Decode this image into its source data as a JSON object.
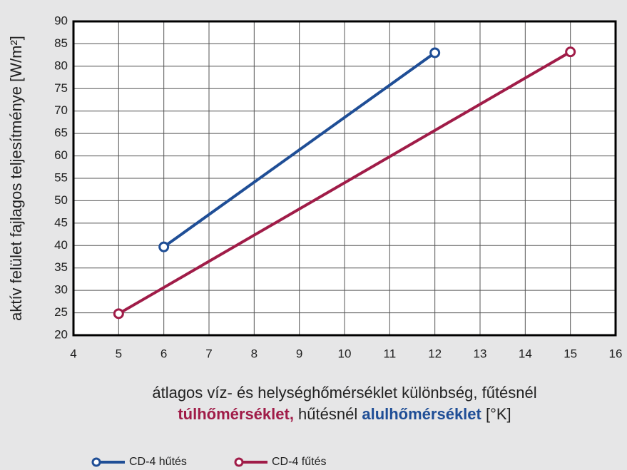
{
  "chart_data": {
    "type": "line",
    "xlabel": "átlagos víz- és helységhőmérséklet különbség, fűtésnél",
    "xlabel_line2": [
      {
        "text": "túlhőmérséklet,",
        "color": "#a01c48",
        "bold": true
      },
      {
        "text": " hűtésnél ",
        "color": "#222222",
        "bold": false
      },
      {
        "text": "alulhőmérséklet",
        "color": "#1f4e96",
        "bold": true
      },
      {
        "text": " [°K]",
        "color": "#222222",
        "bold": false
      }
    ],
    "ylabel": "aktív felület fajlagos teljesítménye [W/m²]",
    "series": [
      {
        "name": "CD-4 hűtés",
        "color": "#1f4e96",
        "x": [
          6,
          12
        ],
        "values": [
          39.7,
          83
        ]
      },
      {
        "name": "CD-4 fűtés",
        "color": "#a01c48",
        "x": [
          5,
          15
        ],
        "values": [
          24.8,
          83.2
        ]
      }
    ],
    "xlim": [
      4,
      16
    ],
    "xticks": [
      4,
      5,
      6,
      7,
      8,
      9,
      10,
      11,
      12,
      13,
      14,
      15,
      16
    ],
    "ylim": [
      20,
      90
    ],
    "yticks": [
      20,
      25,
      30,
      35,
      40,
      45,
      50,
      55,
      60,
      65,
      70,
      75,
      80,
      85,
      90
    ],
    "grid": true,
    "legend": "bottom-left"
  }
}
